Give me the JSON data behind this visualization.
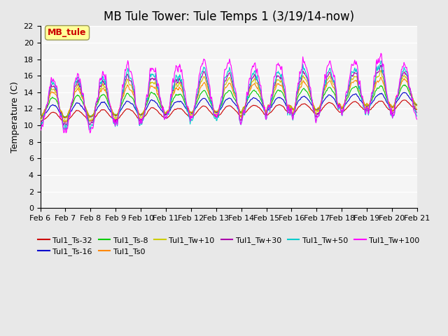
{
  "title": "MB Tule Tower: Tule Temps 1 (3/19/14-now)",
  "ylabel": "Temperature (C)",
  "xlabel": "",
  "ylim": [
    0,
    22
  ],
  "yticks": [
    0,
    2,
    4,
    6,
    8,
    10,
    12,
    14,
    16,
    18,
    20,
    22
  ],
  "x_labels": [
    "Feb 6",
    "Feb 7",
    "Feb 8",
    "Feb 9",
    "Feb 10",
    "Feb 11",
    "Feb 12",
    "Feb 13",
    "Feb 14",
    "Feb 15",
    "Feb 16",
    "Feb 17",
    "Feb 18",
    "Feb 19",
    "Feb 20",
    "Feb 21"
  ],
  "watermark_text": "MB_tule",
  "series": [
    {
      "label": "Tul1_Ts-32",
      "color": "#cc0000"
    },
    {
      "label": "Tul1_Ts-16",
      "color": "#0000cc"
    },
    {
      "label": "Tul1_Ts-8",
      "color": "#00cc00"
    },
    {
      "label": "Tul1_Ts0",
      "color": "#ff8800"
    },
    {
      "label": "Tul1_Tw+10",
      "color": "#cccc00"
    },
    {
      "label": "Tul1_Tw+30",
      "color": "#aa00aa"
    },
    {
      "label": "Tul1_Tw+50",
      "color": "#00cccc"
    },
    {
      "label": "Tul1_Tw+100",
      "color": "#ff00ff"
    }
  ],
  "background_color": "#e8e8e8",
  "plot_background": "#f5f5f5",
  "grid_color": "#ffffff",
  "title_fontsize": 12,
  "label_fontsize": 9,
  "tick_fontsize": 8
}
